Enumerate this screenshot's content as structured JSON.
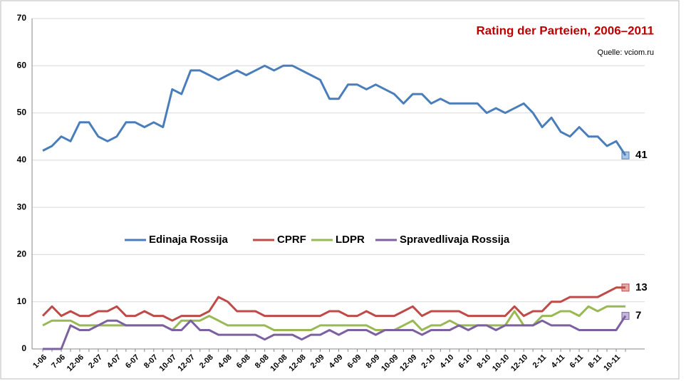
{
  "chart_data": {
    "type": "line",
    "title": "Rating der Parteien, 2006–2011",
    "source": "Quelle: vciom.ru",
    "categories": [
      "1-06",
      null,
      "7-06",
      null,
      "12-06",
      null,
      "2-07",
      null,
      "4-07",
      null,
      "6-07",
      null,
      "8-07",
      null,
      "10-07",
      null,
      "12-07",
      null,
      "2-08",
      null,
      "4-08",
      null,
      "6-08",
      null,
      "8-08",
      null,
      "10-08",
      null,
      "12-08",
      null,
      "2-09",
      null,
      "4-09",
      null,
      "6-09",
      null,
      "8-09",
      null,
      "10-09",
      null,
      "12-09",
      null,
      "2-10",
      null,
      "4-10",
      null,
      "6-10",
      null,
      "8-10",
      null,
      "10-10",
      null,
      "12-10",
      null,
      "2-11",
      null,
      "4-11",
      null,
      "6-11",
      null,
      "8-11",
      null,
      "10-11",
      null
    ],
    "series": [
      {
        "name": "Edinaja Rossija",
        "color": "#4a7ebb",
        "values": [
          42,
          43,
          45,
          44,
          48,
          48,
          45,
          44,
          45,
          48,
          48,
          47,
          48,
          47,
          55,
          54,
          59,
          59,
          58,
          57,
          58,
          59,
          58,
          59,
          60,
          59,
          60,
          60,
          59,
          58,
          57,
          53,
          53,
          56,
          56,
          55,
          56,
          55,
          54,
          52,
          54,
          54,
          52,
          53,
          52,
          52,
          52,
          52,
          50,
          51,
          50,
          51,
          52,
          50,
          47,
          49,
          46,
          45,
          47,
          45,
          45,
          43,
          44,
          41
        ]
      },
      {
        "name": "CPRF",
        "color": "#be4b48",
        "values": [
          7,
          9,
          7,
          8,
          7,
          7,
          8,
          8,
          9,
          7,
          7,
          8,
          7,
          7,
          6,
          7,
          7,
          7,
          8,
          11,
          10,
          8,
          8,
          8,
          7,
          7,
          7,
          7,
          7,
          7,
          7,
          8,
          8,
          7,
          7,
          8,
          7,
          7,
          7,
          8,
          9,
          7,
          8,
          8,
          8,
          8,
          7,
          7,
          7,
          7,
          7,
          9,
          7,
          8,
          8,
          10,
          10,
          11,
          11,
          11,
          11,
          12,
          13,
          13
        ]
      },
      {
        "name": "LDPR",
        "color": "#98b954",
        "values": [
          5,
          6,
          6,
          6,
          5,
          5,
          5,
          5,
          5,
          5,
          5,
          5,
          5,
          5,
          4,
          6,
          6,
          6,
          7,
          6,
          5,
          5,
          5,
          5,
          5,
          4,
          4,
          4,
          4,
          4,
          5,
          5,
          5,
          5,
          5,
          5,
          4,
          4,
          4,
          5,
          6,
          4,
          5,
          5,
          6,
          5,
          5,
          5,
          5,
          5,
          5,
          8,
          5,
          5,
          7,
          7,
          8,
          8,
          7,
          9,
          8,
          9,
          9,
          9
        ]
      },
      {
        "name": "Spravedlivaja Rossija",
        "color": "#7d60a0",
        "values": [
          0,
          0,
          0,
          5,
          4,
          4,
          5,
          6,
          6,
          5,
          5,
          5,
          5,
          5,
          4,
          4,
          6,
          4,
          4,
          3,
          3,
          3,
          3,
          3,
          2,
          3,
          3,
          3,
          2,
          3,
          3,
          4,
          3,
          4,
          4,
          4,
          3,
          4,
          4,
          4,
          4,
          3,
          4,
          4,
          4,
          5,
          4,
          5,
          5,
          4,
          5,
          5,
          5,
          5,
          6,
          5,
          5,
          5,
          4,
          4,
          4,
          4,
          4,
          7
        ]
      }
    ],
    "ylim": [
      0,
      70
    ],
    "yticks": [
      0,
      10,
      20,
      30,
      40,
      50,
      60,
      70
    ],
    "grid": true,
    "end_labels": [
      0,
      1,
      3
    ]
  }
}
